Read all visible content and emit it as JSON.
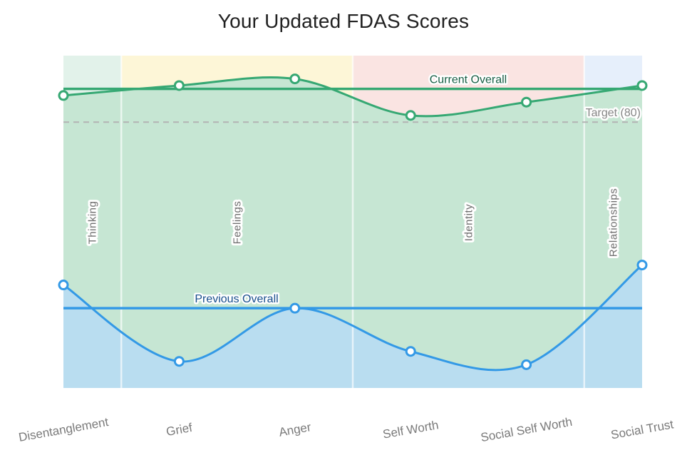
{
  "title": "Your Updated FDAS Scores",
  "chart_data": {
    "type": "line",
    "categories": [
      "Disentanglement",
      "Grief",
      "Anger",
      "Self Worth",
      "Social Self Worth",
      "Social Trust"
    ],
    "series": [
      {
        "name": "current",
        "values": [
          88,
          91,
          93,
          82,
          86,
          91
        ],
        "line_color": "#36a873",
        "fill_color": "#c6e6d3",
        "marker": "white-circle-green-ring"
      },
      {
        "name": "previous",
        "values": [
          31,
          8,
          24,
          11,
          7,
          37
        ],
        "line_color": "#3399e6",
        "fill_color": "#b9ddf0",
        "marker": "white-circle-blue-ring"
      }
    ],
    "reference_lines": [
      {
        "id": "current-overall",
        "label": "Current Overall",
        "value": 90,
        "style": "solid",
        "line_color": "#36a873",
        "label_color": "#175e44"
      },
      {
        "id": "target",
        "label": "Target (80)",
        "value": 80,
        "style": "dashed",
        "line_color": "#b3b3b3",
        "label_color": "#868686"
      },
      {
        "id": "previous-overall",
        "label": "Previous Overall",
        "value": 24,
        "style": "solid",
        "line_color": "#3399e6",
        "label_color": "#174e8c"
      }
    ],
    "bands": [
      {
        "label": "Thinking",
        "from": 0,
        "to": 0,
        "color": "#e2f2ea"
      },
      {
        "label": "Feelings",
        "from": 1,
        "to": 2,
        "color": "#fdf6d7"
      },
      {
        "label": "Identity",
        "from": 3,
        "to": 4,
        "color": "#fae4e2"
      },
      {
        "label": "Relationships",
        "from": 5,
        "to": 5,
        "color": "#e6effb"
      }
    ],
    "band_label_color": "#6f6f6f",
    "xtick_color": "#7a7a7a",
    "gridline_color": "rgba(255,255,255,0.65)",
    "ylim": [
      0,
      100
    ],
    "legend": "none",
    "grid": "vertical-band-boundaries-only"
  }
}
